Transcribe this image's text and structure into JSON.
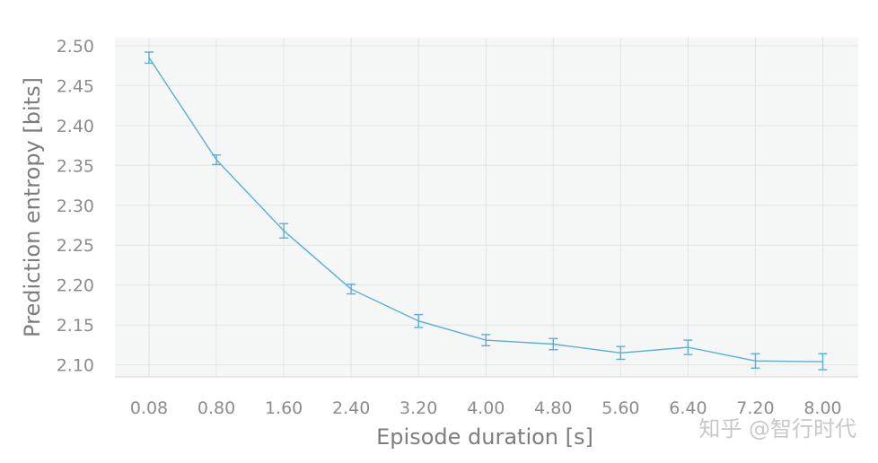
{
  "chart_data": {
    "type": "line",
    "title": "",
    "xlabel": "Episode duration [s]",
    "ylabel": "Prediction entropy [bits]",
    "categories": [
      "0.08",
      "0.80",
      "1.60",
      "2.40",
      "3.20",
      "4.00",
      "4.80",
      "5.60",
      "6.40",
      "7.20",
      "8.00"
    ],
    "values": [
      2.485,
      2.357,
      2.268,
      2.195,
      2.155,
      2.131,
      2.126,
      2.115,
      2.122,
      2.105,
      2.104
    ],
    "errors": [
      0.007,
      0.006,
      0.009,
      0.006,
      0.008,
      0.007,
      0.007,
      0.008,
      0.009,
      0.009,
      0.01
    ],
    "ylim": [
      2.085,
      2.51
    ],
    "yticks": [
      "2.10",
      "2.15",
      "2.20",
      "2.25",
      "2.30",
      "2.35",
      "2.40",
      "2.45",
      "2.50"
    ],
    "grid": true,
    "line_color": "#5aaed6",
    "panel_color": "#f5f7f6",
    "grid_color": "#e3e5e4"
  },
  "watermark": "知乎 @智行时代"
}
